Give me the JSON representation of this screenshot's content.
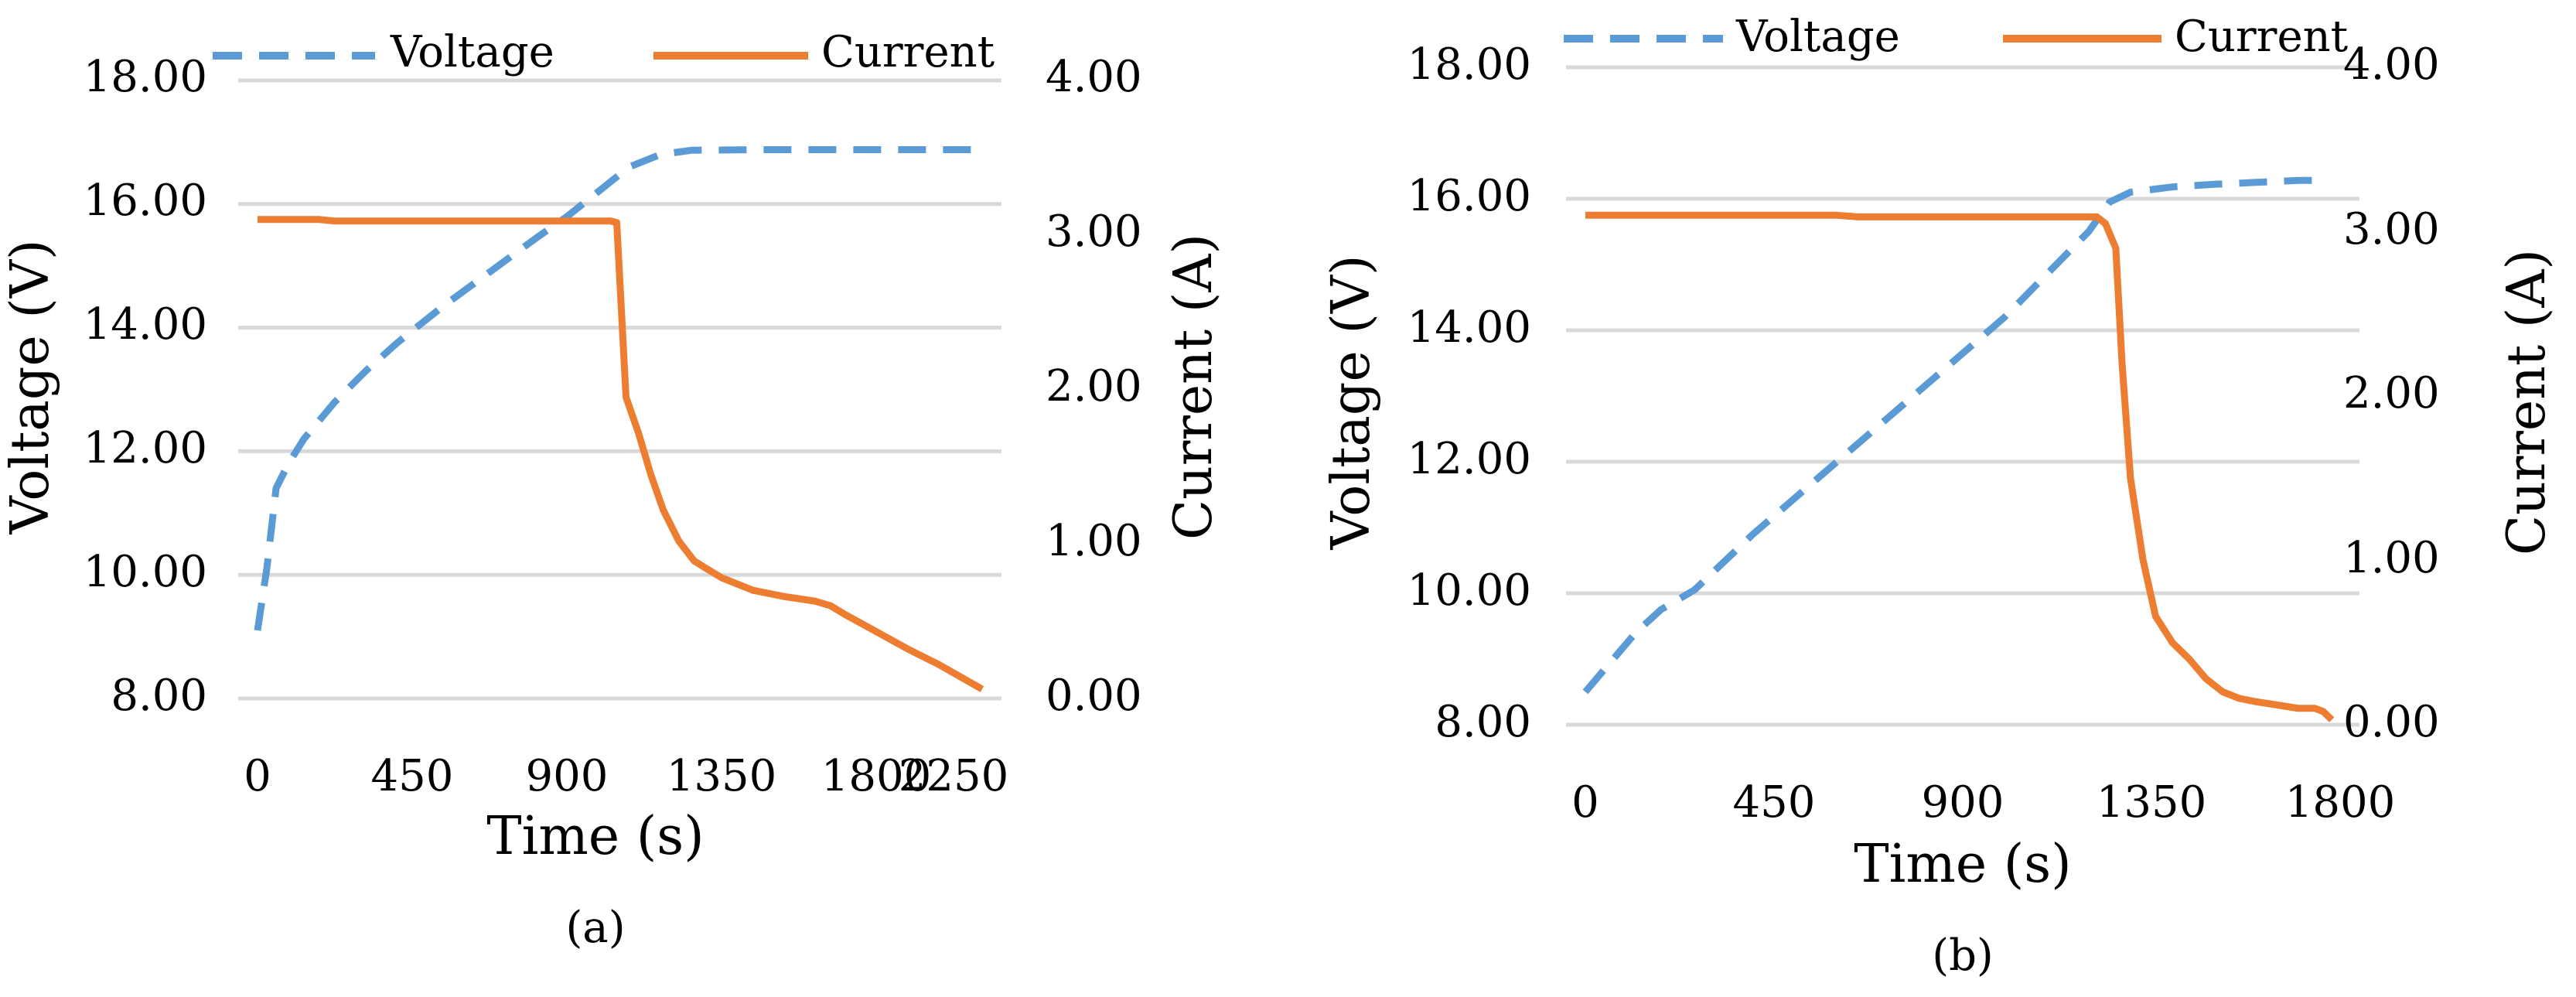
{
  "colors": {
    "voltage": "#5b9bd5",
    "current": "#ed7d31",
    "grid": "#d9d9d9",
    "text": "#000000"
  },
  "chart_data": [
    {
      "type": "line",
      "caption": "(a)",
      "xlabel": "Time (s)",
      "ylabel_left": "Voltage (V)",
      "ylabel_right": "Current (A)",
      "xlim": [
        0,
        2340
      ],
      "xticks": [
        0,
        450,
        900,
        1350,
        1800,
        2250
      ],
      "xtick_labels": [
        "0",
        "450",
        "900",
        "1350",
        "1800",
        "2250"
      ],
      "ylim_left": [
        8,
        18
      ],
      "ytick_labels_left": [
        "8.00",
        "10.00",
        "12.00",
        "14.00",
        "16.00",
        "18.00"
      ],
      "ylim_right": [
        0,
        4
      ],
      "ytick_labels_right": [
        "0.00",
        "1.00",
        "2.00",
        "3.00",
        "4.00"
      ],
      "legend": {
        "position": "top",
        "entries": [
          "Voltage",
          "Current"
        ]
      },
      "series": [
        {
          "name": "Voltage",
          "axis": "left",
          "style": "dashed",
          "x": [
            0,
            30,
            60,
            100,
            150,
            250,
            350,
            450,
            600,
            750,
            900,
            1000,
            1100,
            1200,
            1300,
            1400,
            1600,
            1800,
            2000,
            2200,
            2340
          ],
          "y": [
            9.1,
            10.1,
            11.4,
            11.8,
            12.2,
            12.8,
            13.3,
            13.75,
            14.35,
            14.9,
            15.45,
            15.8,
            16.2,
            16.6,
            16.8,
            16.87,
            16.88,
            16.88,
            16.88,
            16.88,
            16.88
          ]
        },
        {
          "name": "Current",
          "axis": "right",
          "style": "solid",
          "x": [
            0,
            200,
            250,
            1140,
            1160,
            1190,
            1230,
            1270,
            1310,
            1360,
            1410,
            1450,
            1500,
            1550,
            1600,
            1700,
            1800,
            1850,
            1900,
            2000,
            2100,
            2200,
            2340
          ],
          "y": [
            3.1,
            3.1,
            3.09,
            3.09,
            3.08,
            1.95,
            1.72,
            1.45,
            1.22,
            1.02,
            0.89,
            0.84,
            0.78,
            0.74,
            0.7,
            0.66,
            0.63,
            0.6,
            0.54,
            0.43,
            0.32,
            0.22,
            0.06
          ]
        }
      ]
    },
    {
      "type": "line",
      "caption": "(b)",
      "xlabel": "Time (s)",
      "ylabel_left": "Voltage  (V)",
      "ylabel_right": "Current (A)",
      "xlim": [
        0,
        1800
      ],
      "xticks": [
        0,
        450,
        900,
        1350,
        1800
      ],
      "xtick_labels": [
        "0",
        "450",
        "900",
        "1350",
        "1800"
      ],
      "ylim_left": [
        8,
        18
      ],
      "ytick_labels_left": [
        "8.00",
        "10.00",
        "12.00",
        "14.00",
        "16.00",
        "18.00"
      ],
      "ylim_right": [
        0,
        4
      ],
      "ytick_labels_right": [
        "0.00",
        "1.00",
        "2.00",
        "3.00",
        "4.00"
      ],
      "legend": {
        "position": "top",
        "entries": [
          "Voltage",
          "Current"
        ]
      },
      "series": [
        {
          "name": "Voltage",
          "axis": "left",
          "style": "dashed",
          "x": [
            0,
            60,
            120,
            180,
            260,
            400,
            600,
            800,
            1000,
            1200,
            1250,
            1300,
            1400,
            1500,
            1600,
            1700,
            1760
          ],
          "y": [
            8.5,
            8.95,
            9.4,
            9.75,
            10.05,
            10.9,
            12.0,
            13.1,
            14.2,
            15.5,
            15.95,
            16.1,
            16.18,
            16.22,
            16.25,
            16.28,
            16.28
          ]
        },
        {
          "name": "Current",
          "axis": "right",
          "style": "solid",
          "x": [
            0,
            600,
            650,
            1220,
            1240,
            1265,
            1280,
            1300,
            1330,
            1360,
            1400,
            1440,
            1480,
            1520,
            1560,
            1600,
            1650,
            1700,
            1740,
            1760,
            1780
          ],
          "y": [
            3.1,
            3.1,
            3.09,
            3.09,
            3.05,
            2.9,
            2.2,
            1.5,
            1.0,
            0.66,
            0.5,
            0.4,
            0.28,
            0.2,
            0.16,
            0.14,
            0.12,
            0.1,
            0.1,
            0.08,
            0.03
          ]
        }
      ]
    }
  ]
}
